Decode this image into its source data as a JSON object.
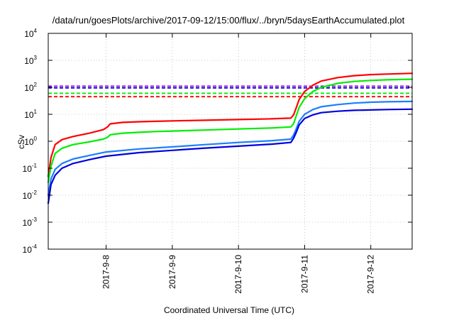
{
  "chart_data": {
    "type": "line",
    "title": "/data/run/goesPlots/archive/2017-09-12/15:00/flux/../bryn/5daysEarthAccumulated.plot",
    "xlabel": "Coordinated Universal Time (UTC)",
    "ylabel": "cSv",
    "y_scale": "log",
    "ylim": [
      0.0001,
      10000
    ],
    "y_ticks": [
      {
        "value": 0.0001,
        "base": "10",
        "exp": "-4"
      },
      {
        "value": 0.001,
        "base": "10",
        "exp": "-3"
      },
      {
        "value": 0.01,
        "base": "10",
        "exp": "-2"
      },
      {
        "value": 0.1,
        "base": "10",
        "exp": "-1"
      },
      {
        "value": 1,
        "base": "10",
        "exp": "0"
      },
      {
        "value": 10,
        "base": "10",
        "exp": "1"
      },
      {
        "value": 100,
        "base": "10",
        "exp": "2"
      },
      {
        "value": 1000,
        "base": "10",
        "exp": "3"
      },
      {
        "value": 10000,
        "base": "10",
        "exp": "4"
      }
    ],
    "x_type": "date",
    "xlim": [
      "2017-09-07 03:00",
      "2017-09-12 15:00"
    ],
    "x_ticks": [
      {
        "value": "2017-09-08 00:00",
        "label": "2017-9-8"
      },
      {
        "value": "2017-09-09 00:00",
        "label": "2017-9-9"
      },
      {
        "value": "2017-09-10 00:00",
        "label": "2017-9-10"
      },
      {
        "value": "2017-09-11 00:00",
        "label": "2017-9-11"
      },
      {
        "value": "2017-09-12 00:00",
        "label": "2017-9-12"
      }
    ],
    "grid": true,
    "series": [
      {
        "color": "#ff0000",
        "x": [
          "2017-09-07 03:00",
          "2017-09-07 04:00",
          "2017-09-07 05:30",
          "2017-09-07 08:00",
          "2017-09-07 12:00",
          "2017-09-07 18:00",
          "2017-09-07 23:00",
          "2017-09-08 00:30",
          "2017-09-08 01:30",
          "2017-09-08 06:00",
          "2017-09-08 12:00",
          "2017-09-08 18:00",
          "2017-09-09 00:00",
          "2017-09-09 12:00",
          "2017-09-10 00:00",
          "2017-09-10 12:00",
          "2017-09-10 19:00",
          "2017-09-10 20:00",
          "2017-09-10 21:00",
          "2017-09-10 22:00",
          "2017-09-11 00:00",
          "2017-09-11 03:00",
          "2017-09-11 06:00",
          "2017-09-11 12:00",
          "2017-09-11 18:00",
          "2017-09-12 00:00",
          "2017-09-12 06:00",
          "2017-09-12 15:00"
        ],
        "y": [
          0.05,
          0.25,
          0.75,
          1.15,
          1.5,
          2.0,
          2.7,
          3.4,
          4.4,
          5.0,
          5.3,
          5.5,
          5.7,
          6.0,
          6.4,
          6.8,
          7.2,
          9.5,
          18,
          35,
          70,
          120,
          170,
          230,
          270,
          295,
          310,
          330
        ]
      },
      {
        "color": "#00ee00",
        "x": [
          "2017-09-07 03:00",
          "2017-09-07 04:00",
          "2017-09-07 05:30",
          "2017-09-07 08:00",
          "2017-09-07 12:00",
          "2017-09-07 18:00",
          "2017-09-07 23:00",
          "2017-09-08 00:30",
          "2017-09-08 01:30",
          "2017-09-08 06:00",
          "2017-09-08 12:00",
          "2017-09-08 18:00",
          "2017-09-09 00:00",
          "2017-09-09 12:00",
          "2017-09-10 00:00",
          "2017-09-10 12:00",
          "2017-09-10 19:00",
          "2017-09-10 20:00",
          "2017-09-10 21:00",
          "2017-09-10 22:00",
          "2017-09-11 00:00",
          "2017-09-11 03:00",
          "2017-09-11 06:00",
          "2017-09-11 12:00",
          "2017-09-11 18:00",
          "2017-09-12 00:00",
          "2017-09-12 06:00",
          "2017-09-12 15:00"
        ],
        "y": [
          0.03,
          0.12,
          0.35,
          0.55,
          0.75,
          0.95,
          1.2,
          1.4,
          1.75,
          2.0,
          2.15,
          2.3,
          2.4,
          2.6,
          2.85,
          3.1,
          3.4,
          4.5,
          9,
          18,
          38,
          70,
          100,
          140,
          165,
          180,
          190,
          200
        ]
      },
      {
        "color": "#1a7fff",
        "x": [
          "2017-09-07 03:00",
          "2017-09-07 04:00",
          "2017-09-07 05:30",
          "2017-09-07 08:00",
          "2017-09-07 12:00",
          "2017-09-07 18:00",
          "2017-09-08 00:00",
          "2017-09-08 12:00",
          "2017-09-09 00:00",
          "2017-09-09 12:00",
          "2017-09-10 00:00",
          "2017-09-10 12:00",
          "2017-09-10 19:00",
          "2017-09-10 20:00",
          "2017-09-10 21:00",
          "2017-09-10 22:00",
          "2017-09-11 00:00",
          "2017-09-11 03:00",
          "2017-09-11 06:00",
          "2017-09-11 12:00",
          "2017-09-11 18:00",
          "2017-09-12 00:00",
          "2017-09-12 06:00",
          "2017-09-12 15:00"
        ],
        "y": [
          0.01,
          0.04,
          0.09,
          0.15,
          0.22,
          0.3,
          0.4,
          0.52,
          0.62,
          0.75,
          0.9,
          1.05,
          1.2,
          1.7,
          3,
          5.5,
          10,
          15,
          19,
          23,
          26,
          28,
          29,
          30
        ]
      },
      {
        "color": "#0000dd",
        "x": [
          "2017-09-07 03:00",
          "2017-09-07 04:00",
          "2017-09-07 05:30",
          "2017-09-07 08:00",
          "2017-09-07 12:00",
          "2017-09-07 18:00",
          "2017-09-08 00:00",
          "2017-09-08 12:00",
          "2017-09-09 00:00",
          "2017-09-09 12:00",
          "2017-09-10 00:00",
          "2017-09-10 12:00",
          "2017-09-10 19:00",
          "2017-09-10 20:00",
          "2017-09-10 21:00",
          "2017-09-10 22:00",
          "2017-09-11 00:00",
          "2017-09-11 03:00",
          "2017-09-11 06:00",
          "2017-09-11 12:00",
          "2017-09-11 18:00",
          "2017-09-12 00:00",
          "2017-09-12 06:00",
          "2017-09-12 15:00"
        ],
        "y": [
          0.005,
          0.025,
          0.055,
          0.1,
          0.15,
          0.21,
          0.28,
          0.38,
          0.46,
          0.56,
          0.66,
          0.78,
          0.9,
          1.3,
          2.2,
          4,
          7,
          9.5,
          11.5,
          13,
          14,
          14.5,
          15,
          15.5
        ]
      }
    ],
    "thresholds": [
      {
        "color": "#9400d3",
        "value": 110
      },
      {
        "color": "#0000dd",
        "value": 95
      },
      {
        "color": "#00ee00",
        "value": 60
      },
      {
        "color": "#ff0000",
        "value": 45
      }
    ]
  }
}
